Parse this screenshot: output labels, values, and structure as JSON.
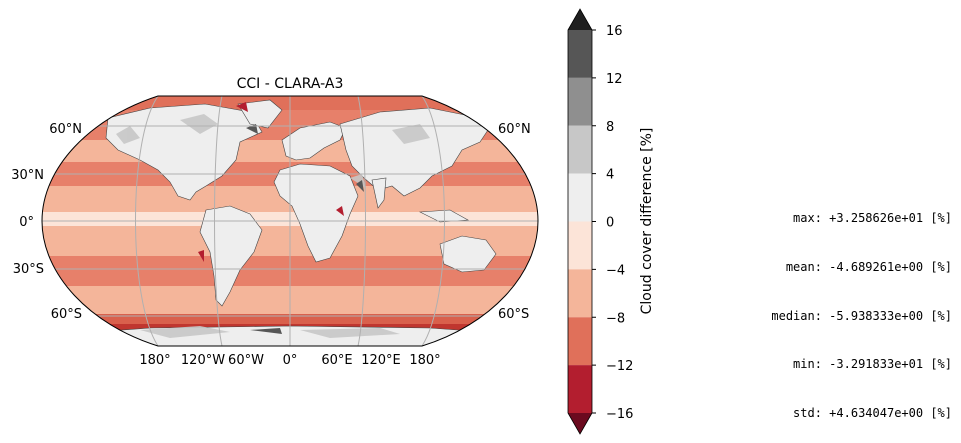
{
  "title": "CCI - CLARA-A3",
  "map": {
    "projection": "Robinson",
    "lat_labels": [
      "60°N",
      "30°N",
      "0°",
      "30°S",
      "60°S"
    ],
    "lon_labels": [
      "180°",
      "120°W",
      "60°W",
      "0°",
      "60°E",
      "120°E",
      "180°"
    ],
    "land_color": "#eeeeee",
    "ocean_color": "#e7806a"
  },
  "colorbar": {
    "label": "Cloud cover difference [%]",
    "ticks": [
      "16",
      "12",
      "8",
      "4",
      "0",
      "−4",
      "−8",
      "−12",
      "−16"
    ],
    "bins": [
      {
        "range": [
          12,
          16
        ],
        "color": "#565656"
      },
      {
        "range": [
          8,
          12
        ],
        "color": "#8f8f8f"
      },
      {
        "range": [
          4,
          8
        ],
        "color": "#c7c7c7"
      },
      {
        "range": [
          0,
          4
        ],
        "color": "#eeeeee"
      },
      {
        "range": [
          -4,
          0
        ],
        "color": "#fce4d8"
      },
      {
        "range": [
          -8,
          -4
        ],
        "color": "#f4b59a"
      },
      {
        "range": [
          -12,
          -8
        ],
        "color": "#e0705a"
      },
      {
        "range": [
          -16,
          -12
        ],
        "color": "#b31e2f"
      }
    ],
    "over_color": "#1f1f1f",
    "under_color": "#6b0a1f"
  },
  "stats": [
    "max: +3.258626e+01 [%]",
    "mean: -4.689261e+00 [%]",
    "median: -5.938333e+00 [%]",
    "min: -3.291833e+01 [%]",
    "std: +4.634047e+00 [%]"
  ]
}
